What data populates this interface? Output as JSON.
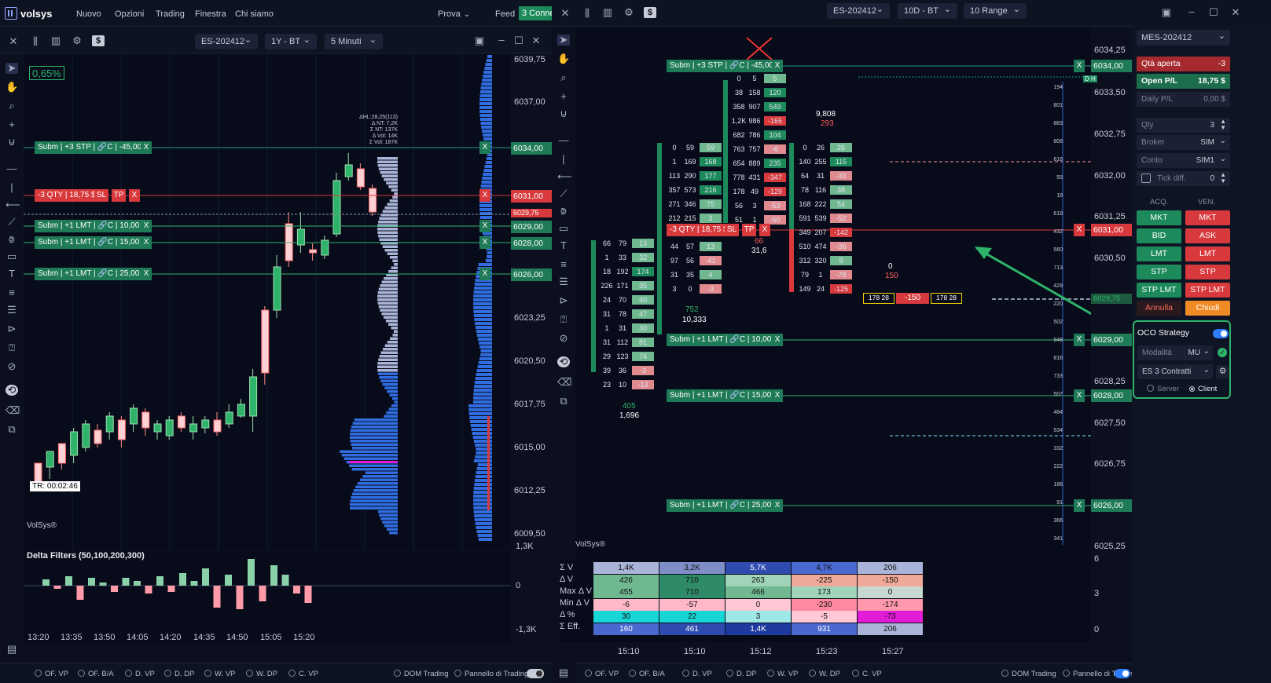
{
  "app": {
    "brand": "volsys",
    "menu": [
      "Nuovo",
      "Opzioni",
      "Trading",
      "Finestra",
      "Chi siamo"
    ],
    "prova": "Prova",
    "feed": "Feed",
    "connections": "3 Conne"
  },
  "left": {
    "symbol": "ES-202412",
    "period": "1Y - BT",
    "timeframe": "5 Minuti",
    "change_badge": "0,65%",
    "delta_filters": "Delta Filters (50,100,200,300)",
    "timer": "TR: 00:02:46",
    "watermark": "VolSys®",
    "price_levels": [
      "6039,75",
      "6037,00",
      "6034,00",
      "6031,00",
      "6029,75",
      "6029,00",
      "6028,00",
      "6026,00",
      "6023,25",
      "6020,50",
      "6017,75",
      "6015,00",
      "6012,25",
      "6009,50"
    ],
    "osc_levels": [
      "1,3K",
      "0",
      "-1,3K"
    ],
    "times": [
      "13:20",
      "13:35",
      "13:50",
      "14:05",
      "14:20",
      "14:35",
      "14:50",
      "15:05",
      "15:20"
    ],
    "profile_stats": [
      "ΔHL:28,25(113)",
      "Δ NT: 7,2K",
      "Σ NT: 137K",
      "Δ Vol: 14K",
      "Σ Vol: 187K"
    ],
    "orders": {
      "stp": "Subm | +3 STP | 🔗C | -45,00 $",
      "pos": "-3 QTY | 18,75 $",
      "sl": "SL",
      "tp": "TP",
      "x": "X",
      "lmt1": "Subm | +1 LMT | 🔗C | 10,00 $",
      "lmt2": "Subm | +1 LMT | 🔗C | 15,00 $",
      "lmt3": "Subm | +1 LMT | 🔗C | 25,00 $"
    },
    "bottom": [
      "OF. VP",
      "OF. B/A",
      "D. VP",
      "D. DP",
      "W. VP",
      "W. DP",
      "C. VP"
    ],
    "dom": "DOM Trading",
    "panel": "Pannello di Trading"
  },
  "right": {
    "symbol": "ES-202412",
    "period": "10D - BT",
    "timeframe": "10 Range",
    "watermark": "VolSys®",
    "price_levels": [
      "6034,25",
      "6034,00",
      "6033,50",
      "6032,75",
      "6032,00",
      "6031,25",
      "6031,00",
      "6030,50",
      "6029,75",
      "6029,00",
      "6028,25",
      "6028,00",
      "6027,50",
      "6026,75",
      "6026,00",
      "6025,25"
    ],
    "dh": "D H",
    "orders": {
      "stp": "Subm | +3 STP | 🔗C | -45,00 $",
      "pos": "-3 QTY | 18,75 $",
      "sl": "SL",
      "tp": "TP",
      "x": "X",
      "lmt1": "Subm | +1 LMT | 🔗C | 10,00 $",
      "lmt2": "Subm | +1 LMT | 🔗C | 15,00 $",
      "lmt3": "Subm | +1 LMT | 🔗C | 25,00 $"
    },
    "floating": {
      "left": "178  28",
      "mid": "-150",
      "right": "178  28"
    },
    "labels": {
      "a": "9,808",
      "b": "293",
      "c": "752",
      "d": "10,333",
      "e": "405",
      "f": "1,696",
      "g": "0",
      "h": "150",
      "i": "66",
      "j": "31,6"
    },
    "stats": {
      "rows": [
        {
          "label": "Σ V",
          "values": [
            "1,4K",
            "3,2K",
            "5,7K",
            "4,7K",
            "206"
          ]
        },
        {
          "label": "Δ V",
          "values": [
            "426",
            "710",
            "263",
            "-225",
            "-150"
          ]
        },
        {
          "label": "Max Δ V",
          "values": [
            "455",
            "710",
            "466",
            "173",
            "0"
          ]
        },
        {
          "label": "Min Δ V",
          "values": [
            "-6",
            "-57",
            "0",
            "-230",
            "-174"
          ]
        },
        {
          "label": "Δ %",
          "values": [
            "30",
            "22",
            "3",
            "-5",
            "-73"
          ]
        },
        {
          "label": "Σ Eff.",
          "values": [
            "160",
            "461",
            "1,4K",
            "931",
            "206"
          ]
        }
      ],
      "times": [
        "15:10",
        "15:10",
        "15:12",
        "15:23",
        "15:27"
      ],
      "axis": [
        "6",
        "3",
        "0"
      ]
    },
    "dom_ladder": [
      "194",
      "801",
      "883",
      "806",
      "616",
      "55",
      "18",
      "619",
      "432",
      "560",
      "713",
      "429",
      "220",
      "502",
      "948",
      "816",
      "733",
      "507",
      "484",
      "534",
      "332",
      "222",
      "186",
      "91",
      "366",
      "341"
    ],
    "bottom": [
      "OF. VP",
      "OF. B/A",
      "D. VP",
      "D. DP",
      "W. VP",
      "W. DP",
      "C. VP"
    ],
    "dom": "DOM Trading",
    "panel": "Pannello di Trading"
  },
  "panel": {
    "instrument": "MES-202412",
    "qta_label": "Qtà aperta",
    "qta_value": "-3",
    "pl_label": "Open P/L",
    "pl_value": "18,75 $",
    "daily_label": "Daily P/L",
    "daily_value": "0,00 $",
    "qty_label": "Qty",
    "qty_value": "3",
    "broker_label": "Broker",
    "broker_value": "SIM",
    "conto_label": "Conto",
    "conto_value": "SIM1",
    "tick_label": "Tick diff.",
    "tick_value": "0",
    "acq": "ACQ.",
    "ven": "VEN.",
    "buttons_left": [
      "MKT",
      "BID",
      "LMT",
      "STP",
      "STP LMT"
    ],
    "buttons_right": [
      "MKT",
      "ASK",
      "LMT",
      "STP",
      "STP LMT"
    ],
    "annulla": "Annulla",
    "chiudi": "Chiudi",
    "oco": "OCO Strategy",
    "modalita_label": "Modalità",
    "modalita_value": "MU",
    "contracts": "ES 3 Contratti",
    "server": "Server",
    "client": "Client"
  },
  "colors": {
    "green": "#1d8a5c",
    "red": "#d8393c",
    "blue": "#2f6de0",
    "cyan": "#17d6d6",
    "magenta": "#e21bd6"
  }
}
